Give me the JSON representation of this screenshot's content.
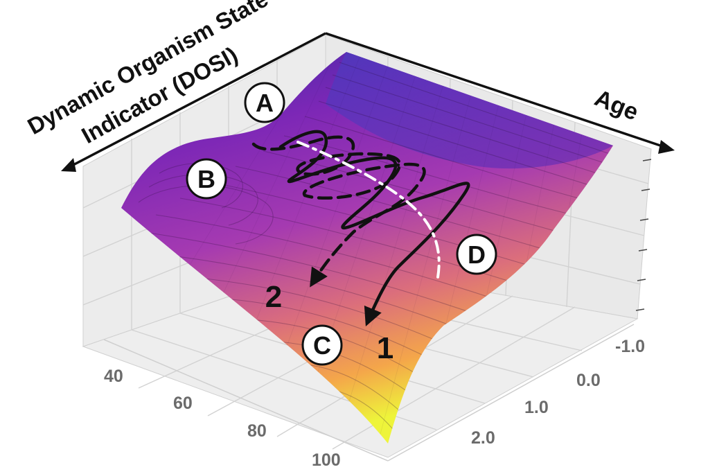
{
  "labels": {
    "vertical_axis": "Dynamic Organism State",
    "vertical_axis_line2": "Indicator (DOSI)",
    "depth_axis": "Age"
  },
  "ticks": {
    "left": [
      "40",
      "60",
      "80",
      "100"
    ],
    "right": [
      "-1.0",
      "0.0",
      "1.0",
      "2.0"
    ]
  },
  "markers": {
    "a": "A",
    "b": "B",
    "c": "C",
    "d": "D"
  },
  "trajectories": {
    "one": "1",
    "two": "2"
  },
  "colors": {
    "surface_low": "#ecf33a",
    "surface_mid": "#c44e9a",
    "surface_high": "#3a2aa4",
    "trajectory": "#111111",
    "separatrix": "#ffffff"
  }
}
